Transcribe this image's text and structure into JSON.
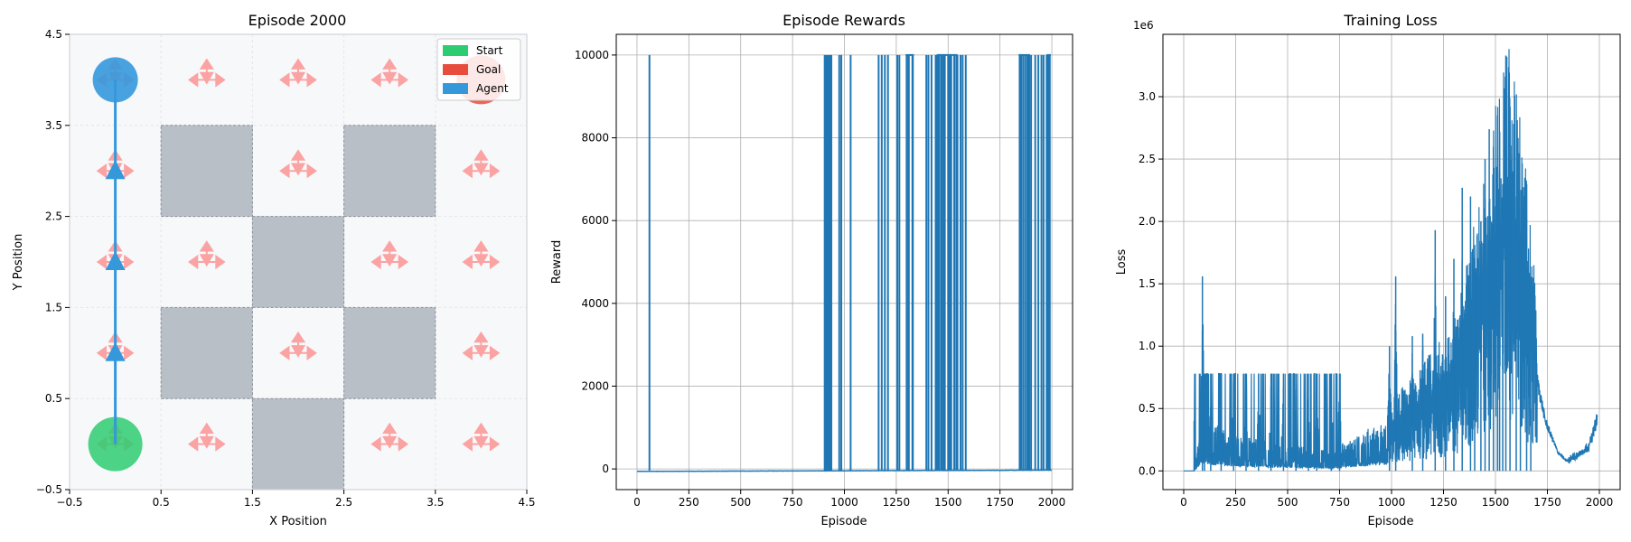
{
  "colors": {
    "start": "#2ecc71",
    "goal": "#e74c3c",
    "agent": "#3498db",
    "obstacle": "#b9bfc7",
    "arrow": "#ff6b6b",
    "line": "#1f77b4",
    "grid_bg": "#f7f8fa"
  },
  "chart_data": [
    {
      "id": "gridworld",
      "type": "scatter",
      "title": "Episode 2000",
      "xlabel": "X Position",
      "ylabel": "Y Position",
      "xlim": [
        -0.5,
        4.5
      ],
      "ylim": [
        -0.5,
        4.5
      ],
      "xticks": [
        -0.5,
        0.5,
        1.5,
        2.5,
        3.5,
        4.5
      ],
      "yticks": [
        -0.5,
        0.5,
        1.5,
        2.5,
        3.5,
        4.5
      ],
      "xtick_labels": [
        "−0.5",
        "0.5",
        "1.5",
        "2.5",
        "3.5",
        "4.5"
      ],
      "ytick_labels": [
        "−0.5",
        "0.5",
        "1.5",
        "2.5",
        "3.5",
        "4.5"
      ],
      "grid": true,
      "legend": {
        "position": "top-right",
        "entries": [
          {
            "label": "Start",
            "color_key": "start"
          },
          {
            "label": "Goal",
            "color_key": "goal"
          },
          {
            "label": "Agent",
            "color_key": "agent"
          }
        ]
      },
      "start": [
        0,
        0
      ],
      "goal": [
        4,
        4
      ],
      "agent": [
        0,
        4
      ],
      "obstacles": [
        [
          1,
          3
        ],
        [
          3,
          3
        ],
        [
          2,
          2
        ],
        [
          1,
          1
        ],
        [
          3,
          1
        ],
        [
          2,
          0
        ]
      ],
      "path": [
        [
          0,
          0
        ],
        [
          0,
          1
        ],
        [
          0,
          2
        ],
        [
          0,
          3
        ],
        [
          0,
          4
        ]
      ],
      "policy_cells": [
        [
          0,
          0
        ],
        [
          1,
          0
        ],
        [
          3,
          0
        ],
        [
          4,
          0
        ],
        [
          0,
          1
        ],
        [
          2,
          1
        ],
        [
          4,
          1
        ],
        [
          0,
          2
        ],
        [
          1,
          2
        ],
        [
          3,
          2
        ],
        [
          4,
          2
        ],
        [
          0,
          3
        ],
        [
          2,
          3
        ],
        [
          4,
          3
        ],
        [
          0,
          4
        ],
        [
          1,
          4
        ],
        [
          2,
          4
        ],
        [
          3,
          4
        ]
      ]
    },
    {
      "id": "rewards",
      "type": "line",
      "title": "Episode Rewards",
      "xlabel": "Episode",
      "ylabel": "Reward",
      "xlim": [
        -100,
        2100
      ],
      "ylim": [
        -500,
        10500
      ],
      "xticks": [
        0,
        250,
        500,
        750,
        1000,
        1250,
        1500,
        1750,
        2000
      ],
      "yticks": [
        0,
        2000,
        4000,
        6000,
        8000,
        10000
      ],
      "grid": true,
      "spikes": [
        60,
        905,
        912,
        918,
        925,
        931,
        937,
        975,
        985,
        1030,
        1165,
        1180,
        1195,
        1210,
        1255,
        1265,
        1300,
        1310,
        1330,
        1395,
        1405,
        1420,
        1440,
        1455,
        1470,
        1480,
        1500,
        1515,
        1530,
        1545,
        1560,
        1570,
        1585,
        1900,
        1920,
        1935,
        1950,
        1960,
        1975,
        1990
      ],
      "plateaus": [
        [
          1295,
          1335
        ],
        [
          1445,
          1545
        ],
        [
          1840,
          1895
        ],
        [
          1975,
          1995
        ]
      ],
      "baseline": {
        "start": -60,
        "end": -30,
        "max_episode": 2000
      }
    },
    {
      "id": "loss",
      "type": "line",
      "title": "Training Loss",
      "xlabel": "Episode",
      "ylabel": "Loss",
      "xlim": [
        -100,
        2100
      ],
      "ylim": [
        -150000,
        3500000
      ],
      "xticks": [
        0,
        250,
        500,
        750,
        1000,
        1250,
        1500,
        1750,
        2000
      ],
      "yticks": [
        0,
        500000,
        1000000,
        1500000,
        2000000,
        2500000,
        3000000
      ],
      "ytick_labels": [
        "0.0",
        "0.5",
        "1.0",
        "1.5",
        "2.0",
        "2.5",
        "3.0"
      ],
      "yscale_label": "1e6",
      "grid": true,
      "trend": [
        [
          0,
          0
        ],
        [
          50,
          0
        ],
        [
          90,
          300000
        ],
        [
          200,
          200000
        ],
        [
          400,
          150000
        ],
        [
          700,
          100000
        ],
        [
          950,
          250000
        ],
        [
          1100,
          380000
        ],
        [
          1300,
          600000
        ],
        [
          1400,
          1000000
        ],
        [
          1500,
          1500000
        ],
        [
          1560,
          1750000
        ],
        [
          1620,
          1450000
        ],
        [
          1680,
          900000
        ],
        [
          1740,
          400000
        ],
        [
          1800,
          150000
        ],
        [
          1840,
          80000
        ],
        [
          1900,
          130000
        ],
        [
          1950,
          200000
        ],
        [
          1990,
          420000
        ]
      ],
      "peaks": [
        [
          50,
          400000
        ],
        [
          90,
          1560000
        ],
        [
          100,
          780000
        ],
        [
          130,
          780000
        ],
        [
          180,
          780000
        ],
        [
          240,
          780000
        ],
        [
          300,
          780000
        ],
        [
          360,
          780000
        ],
        [
          420,
          780000
        ],
        [
          480,
          780000
        ],
        [
          540,
          780000
        ],
        [
          600,
          780000
        ],
        [
          640,
          780000
        ],
        [
          710,
          780000
        ],
        [
          750,
          780000
        ],
        [
          990,
          1000000
        ],
        [
          1020,
          1560000
        ],
        [
          1100,
          1080000
        ],
        [
          1150,
          1100000
        ],
        [
          1210,
          1930000
        ],
        [
          1260,
          1400000
        ],
        [
          1300,
          1700000
        ],
        [
          1340,
          2270000
        ],
        [
          1380,
          2200000
        ],
        [
          1400,
          1700000
        ],
        [
          1430,
          2000000
        ],
        [
          1450,
          2500000
        ],
        [
          1470,
          2740000
        ],
        [
          1490,
          2600000
        ],
        [
          1510,
          2850000
        ],
        [
          1520,
          2400000
        ],
        [
          1535,
          2300000
        ],
        [
          1550,
          3330000
        ],
        [
          1570,
          2500000
        ],
        [
          1600,
          2200000
        ],
        [
          1620,
          1900000
        ],
        [
          1650,
          1500000
        ],
        [
          1670,
          500000
        ]
      ]
    }
  ]
}
